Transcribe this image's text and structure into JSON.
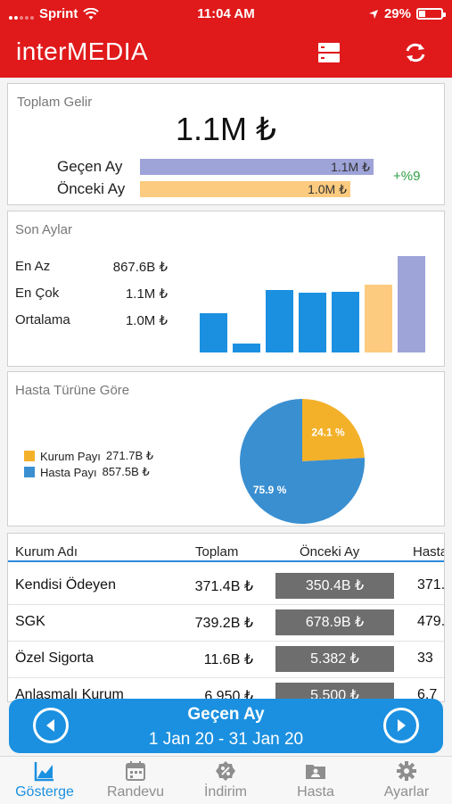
{
  "status_bar": {
    "carrier": "Sprint",
    "time": "11:04 AM",
    "battery": "29%",
    "battery_level": 0.29
  },
  "app": {
    "title": "interMEDIA"
  },
  "revenue": {
    "title": "Toplam Gelir",
    "total": "1.1M ₺",
    "rows": [
      {
        "label": "Geçen Ay",
        "value": "1.1M ₺",
        "fraction": 1.0,
        "color": "#9ea3d8"
      },
      {
        "label": "Önceki Ay",
        "value": "1.0M ₺",
        "fraction": 0.9,
        "color": "#fccb7f"
      }
    ],
    "growth": "+%9",
    "growth_color": "#2ea043"
  },
  "recent_months": {
    "title": "Son Aylar",
    "stats": [
      {
        "label": "En Az",
        "value": "867.6B ₺"
      },
      {
        "label": "En Çok",
        "value": "1.1M ₺"
      },
      {
        "label": "Ortalama",
        "value": "1.0M ₺"
      }
    ],
    "chart_data": {
      "type": "bar",
      "bar_heights_fraction": [
        0.41,
        0.09,
        0.65,
        0.62,
        0.63,
        0.7,
        1.0
      ],
      "bar_colors": [
        "#1b90e0",
        "#1b90e0",
        "#1b90e0",
        "#1b90e0",
        "#1b90e0",
        "#fccb7f",
        "#9ea3d8"
      ]
    }
  },
  "patient_type": {
    "title": "Hasta Türüne Göre",
    "legend": [
      {
        "label": "Kurum Payı",
        "value": "271.7B ₺",
        "color": "#f3b12a"
      },
      {
        "label": "Hasta Payı",
        "value": "857.5B ₺",
        "color": "#3a8fd0"
      }
    ],
    "chart_data": {
      "type": "pie",
      "slices": [
        {
          "label": "Kurum Payı",
          "percent": 24.1,
          "text": "24.1 %",
          "color": "#f3b12a"
        },
        {
          "label": "Hasta Payı",
          "percent": 75.9,
          "text": "75.9 %",
          "color": "#3a8fd0"
        }
      ]
    }
  },
  "table": {
    "headers": [
      "Kurum Adı",
      "Toplam",
      "Önceki Ay",
      "Hasta"
    ],
    "rows": [
      {
        "name": "Kendisi Ödeyen",
        "total": "371.4B ₺",
        "prev": "350.4B ₺",
        "extra": "371."
      },
      {
        "name": "SGK",
        "total": "739.2B ₺",
        "prev": "678.9B ₺",
        "extra": "479."
      },
      {
        "name": "Özel Sigorta",
        "total": "11.6B ₺",
        "prev": "5.382 ₺",
        "extra": "33"
      },
      {
        "name": "Anlaşmalı Kurum",
        "total": "6.950 ₺",
        "prev": "5.500 ₺",
        "extra": "6.7"
      }
    ]
  },
  "period": {
    "title": "Geçen Ay",
    "range": "1 Jan 20 - 31 Jan 20"
  },
  "tabs": [
    {
      "label": "Gösterge",
      "icon": "chart-icon",
      "active": true
    },
    {
      "label": "Randevu",
      "icon": "calendar-icon",
      "active": false
    },
    {
      "label": "İndirim",
      "icon": "discount-icon",
      "active": false
    },
    {
      "label": "Hasta",
      "icon": "patient-folder-icon",
      "active": false
    },
    {
      "label": "Ayarlar",
      "icon": "gear-icon",
      "active": false
    }
  ]
}
